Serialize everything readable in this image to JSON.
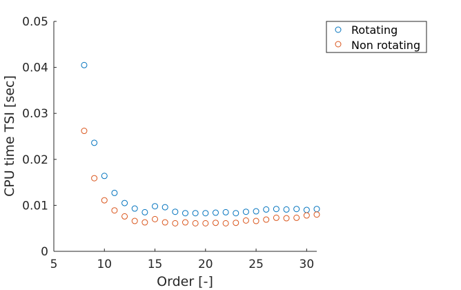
{
  "chart_data": {
    "type": "scatter",
    "xlabel": "Order [-]",
    "ylabel": "CPU time TSI [sec]",
    "xlim": [
      5,
      31
    ],
    "ylim": [
      0,
      0.05
    ],
    "xticks": [
      "5",
      "10",
      "15",
      "20",
      "25",
      "30"
    ],
    "yticks": [
      "0",
      "0.01",
      "0.02",
      "0.03",
      "0.04",
      "0.05"
    ],
    "grid": false,
    "legend_position": "top-right",
    "x": [
      8,
      9,
      10,
      11,
      12,
      13,
      14,
      15,
      16,
      17,
      18,
      19,
      20,
      21,
      22,
      23,
      24,
      25,
      26,
      27,
      28,
      29,
      30,
      31
    ],
    "series": [
      {
        "name": "Rotating",
        "color": "#0072BD",
        "marker": "circle",
        "values": [
          0.0405,
          0.0236,
          0.0164,
          0.0127,
          0.0105,
          0.0093,
          0.0085,
          0.0098,
          0.0096,
          0.0086,
          0.0083,
          0.0083,
          0.0083,
          0.0084,
          0.0085,
          0.0083,
          0.0086,
          0.0087,
          0.0091,
          0.0092,
          0.0091,
          0.0092,
          0.009,
          0.0092
        ]
      },
      {
        "name": "Non rotating",
        "color": "#D95319",
        "marker": "circle",
        "values": [
          0.0262,
          0.0159,
          0.0111,
          0.0089,
          0.0076,
          0.0066,
          0.0063,
          0.007,
          0.0063,
          0.0061,
          0.0063,
          0.0061,
          0.0061,
          0.0062,
          0.0061,
          0.0062,
          0.0067,
          0.0066,
          0.0069,
          0.0073,
          0.0072,
          0.0073,
          0.0078,
          0.008
        ]
      }
    ]
  }
}
